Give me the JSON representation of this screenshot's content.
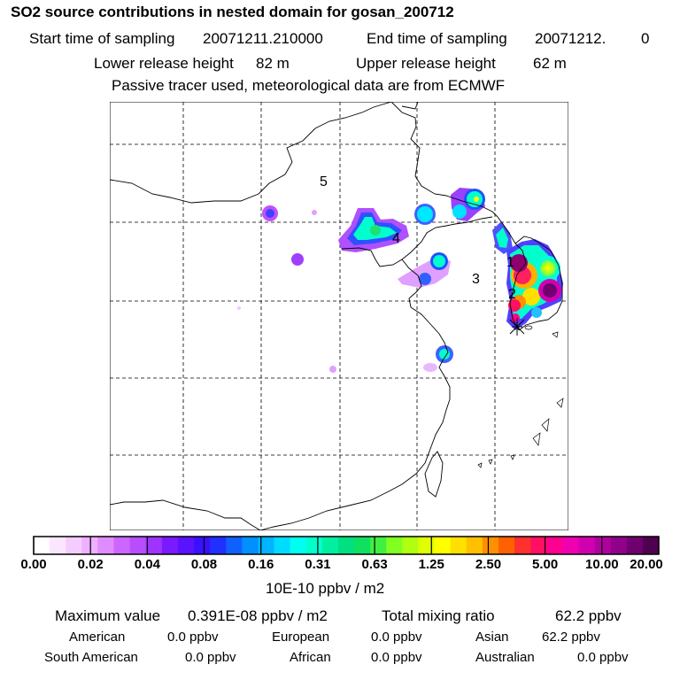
{
  "header": {
    "title": "SO2 source contributions in nested domain for gosan_200712",
    "start_label": "Start time of sampling",
    "start_value": "20071211.210000",
    "end_label": "End time of sampling",
    "end_value": "20071212.",
    "end_suffix": "0",
    "lower_label": "Lower release height",
    "lower_value": "82 m",
    "upper_label": "Upper release height",
    "upper_value": "62 m",
    "note": "Passive tracer used, meteorological data are from ECMWF"
  },
  "map": {
    "region_labels": [
      "5",
      "4",
      "1",
      "3",
      "2"
    ],
    "receptor_marker": "star-receptor"
  },
  "colorbar": {
    "unit": "10E-10 ppbv / m2",
    "tick_labels": [
      "0.00",
      "0.02",
      "0.04",
      "0.08",
      "0.16",
      "0.31",
      "0.63",
      "1.25",
      "2.50",
      "5.00",
      "10.00",
      "20.00"
    ],
    "colors": [
      "#ffffff",
      "#fbe6ff",
      "#f5ccff",
      "#eeb0ff",
      "#e08cff",
      "#cc66ff",
      "#b84dff",
      "#a033ff",
      "#7a1aff",
      "#5a12ff",
      "#3a10ff",
      "#2030ff",
      "#1060ff",
      "#0090ff",
      "#00b4ff",
      "#00dcff",
      "#00ffee",
      "#00ffcc",
      "#00f0a0",
      "#00e080",
      "#10e060",
      "#40f040",
      "#80ff20",
      "#b0ff10",
      "#e0ff00",
      "#ffff00",
      "#ffe000",
      "#ffc000",
      "#ff9000",
      "#ff6000",
      "#ff3030",
      "#ff1060",
      "#ff0090",
      "#f000b0",
      "#d000b0",
      "#b000a0",
      "#90008a",
      "#700070",
      "#500050"
    ]
  },
  "summary": {
    "max_label": "Maximum value",
    "max_value": "0.391E-08 ppbv / m2",
    "total_label": "Total mixing ratio",
    "total_value": "62.2 ppbv",
    "regions": [
      {
        "name": "American",
        "value": "0.0 ppbv"
      },
      {
        "name": "European",
        "value": "0.0 ppbv"
      },
      {
        "name": "Asian",
        "value": "62.2 ppbv"
      },
      {
        "name": "South American",
        "value": "0.0 ppbv"
      },
      {
        "name": "African",
        "value": "0.0 ppbv"
      },
      {
        "name": "Australian",
        "value": "0.0 ppbv"
      }
    ]
  }
}
